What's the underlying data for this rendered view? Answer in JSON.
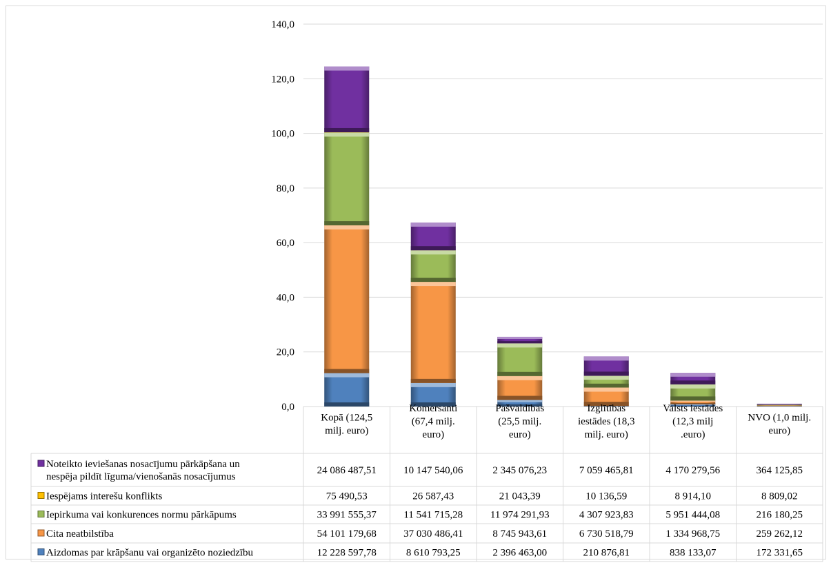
{
  "chart_data": {
    "type": "bar",
    "stacked": true,
    "ylim": [
      0,
      140
    ],
    "yticks": [
      "0,0",
      "20,0",
      "40,0",
      "60,0",
      "80,0",
      "100,0",
      "120,0",
      "140,0"
    ],
    "grid": true,
    "categories": [
      [
        "Kopā (124,5",
        "milj. euro)"
      ],
      [
        "Komersanti",
        "(67,4 milj.",
        "euro)"
      ],
      [
        "Pašvaldības",
        "(25,5 milj.",
        "euro)"
      ],
      [
        "Izglītības",
        "iestādes (18,3",
        "milj. euro)"
      ],
      [
        "Valsts iestādes",
        "(12,3 milj",
        ".euro)"
      ],
      [
        "NVO (1,0 milj.",
        "euro)"
      ]
    ],
    "series": [
      {
        "name": "Aizdomas par krāpšanu vai organizēto noziedzību",
        "name_lines": [
          "Aizdomas par krāpšanu vai organizēto noziedzību"
        ],
        "color": "#4f81bd",
        "values": [
          12.23,
          8.61,
          2.4,
          0.21,
          0.84,
          0.17
        ],
        "labels": [
          "12 228 597,78",
          "8 610 793,25",
          "2 396 463,00",
          "210 876,81",
          "838 133,07",
          "172 331,65"
        ]
      },
      {
        "name": "Cita neatbilstība",
        "name_lines": [
          "Cita neatbilstība"
        ],
        "color": "#f79646",
        "values": [
          54.1,
          37.03,
          8.75,
          6.73,
          1.33,
          0.26
        ],
        "labels": [
          "54 101 179,68",
          "37 030 486,41",
          "8 745 943,61",
          "6 730 518,79",
          "1 334 968,75",
          "259 262,12"
        ]
      },
      {
        "name": "Iepirkuma vai konkurences normu pārkāpums",
        "name_lines": [
          "Iepirkuma vai konkurences normu pārkāpums"
        ],
        "color": "#9bbb59",
        "values": [
          33.99,
          11.54,
          11.97,
          4.31,
          5.95,
          0.22
        ],
        "labels": [
          "33 991 555,37",
          "11 541 715,28",
          "11 974 291,93",
          "4 307 923,83",
          "5 951 444,08",
          "216 180,25"
        ]
      },
      {
        "name": "Iespējams interešu konflikts",
        "name_lines": [
          "Iespējams interešu konflikts"
        ],
        "color": "#ffc000",
        "values": [
          0.08,
          0.03,
          0.02,
          0.01,
          0.01,
          0.01
        ],
        "labels": [
          "75 490,53",
          "26 587,43",
          "21 043,39",
          "10 136,59",
          "8 914,10",
          "8 809,02"
        ]
      },
      {
        "name": "Noteikto ieviešanas nosacījumu pārkāpšana un nespēja pildīt līguma/vienošanās nosacījumus",
        "name_lines": [
          "Noteikto ieviešanas nosacījumu pārkāpšana un",
          "nespēja pildīt līguma/vienošanās nosacījumus"
        ],
        "color": "#7030a0",
        "values": [
          24.09,
          10.15,
          2.35,
          7.06,
          4.17,
          0.36
        ],
        "labels": [
          "24 086 487,51",
          "10 147 540,06",
          "2 345 076,23",
          "7 059 465,81",
          "4 170 279,56",
          "364 125,85"
        ]
      }
    ]
  }
}
